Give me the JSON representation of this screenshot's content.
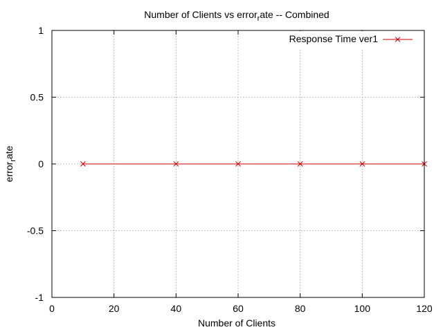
{
  "chart_data": {
    "type": "line",
    "title": "Number of Clients vs error",
    "title_sub": "r",
    "title_rest": "ate -- Combined",
    "xlabel": "Number of Clients",
    "ylabel_main": "error",
    "ylabel_sub": "r",
    "ylabel_rest": "ate",
    "xlim": [
      0,
      120
    ],
    "ylim": [
      -1,
      1
    ],
    "xticks": [
      0,
      20,
      40,
      60,
      80,
      100,
      120
    ],
    "yticks": [
      1,
      0.5,
      0,
      -0.5,
      -1
    ],
    "ytick_labels": [
      "1",
      "0.5",
      "0",
      "-0.5",
      "-1"
    ],
    "grid": true,
    "legend_position": "top-right",
    "series": [
      {
        "name": "Response Time ver1",
        "color": "#cc0000",
        "marker": "x",
        "x": [
          10,
          40,
          60,
          80,
          100,
          120
        ],
        "y": [
          0,
          0,
          0,
          0,
          0,
          0
        ]
      }
    ]
  }
}
